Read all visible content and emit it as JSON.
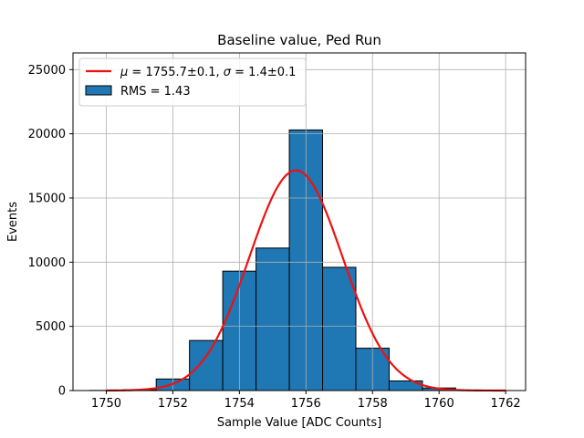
{
  "chart_data": {
    "type": "bar",
    "title": "Baseline value, Ped Run",
    "xlabel": "Sample Value [ADC Counts]",
    "ylabel": "Events",
    "xlim": [
      1749,
      1762.6
    ],
    "ylim": [
      0,
      26300
    ],
    "xticks": [
      1750,
      1752,
      1754,
      1756,
      1758,
      1760,
      1762
    ],
    "yticks": [
      0,
      5000,
      10000,
      15000,
      20000,
      25000
    ],
    "grid": true,
    "legend_position": "top-left",
    "histogram": {
      "name": "RMS = 1.43",
      "color": "#1f77b4",
      "bin_edges": [
        1749.5,
        1750.5,
        1751.5,
        1752.5,
        1753.5,
        1754.5,
        1755.5,
        1756.5,
        1757.5,
        1758.5,
        1759.5,
        1760.5
      ],
      "counts": [
        10,
        60,
        900,
        3900,
        9300,
        11100,
        20300,
        9600,
        3300,
        750,
        200
      ]
    },
    "fit": {
      "name": "$\\mu = 1755.7 \\pm 0.1$, $\\sigma = 1.4 \\pm 0.1$",
      "legend_label": {
        "mu": "μ",
        "mu_text": " = 1755.7±0.1, ",
        "sigma": "σ",
        "sigma_text": " = 1.4±0.1"
      },
      "color": "#ee1111",
      "function": "gaussian",
      "amplitude": 17150,
      "mu": 1755.7,
      "sigma": 1.4,
      "x_range": [
        1750,
        1762
      ]
    }
  }
}
